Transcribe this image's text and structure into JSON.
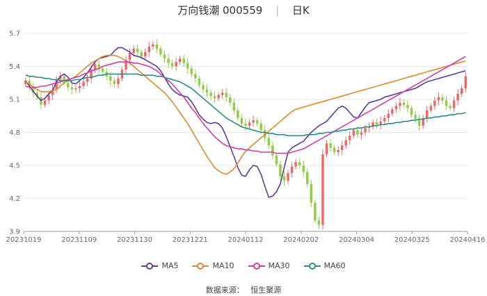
{
  "title": {
    "name": "万向钱潮 000559",
    "period": "日K"
  },
  "source": {
    "label": "数据来源：",
    "value": "恒生聚源"
  },
  "chart_data": {
    "type": "candlestick",
    "ylim": [
      3.9,
      5.7
    ],
    "y_ticks": [
      "3.9",
      "4.2",
      "4.5",
      "4.8",
      "5.1",
      "5.4",
      "5.7"
    ],
    "x_ticks": [
      "20231019",
      "20231109",
      "20231130",
      "20231221",
      "20240112",
      "20240202",
      "20240304",
      "20240325",
      "20240416"
    ],
    "up_color": "#ee6666",
    "down_color": "#91cc45",
    "legend_placement": "bottom",
    "grid": true,
    "series": [
      {
        "name": "MA5",
        "color": "#5b3d9c"
      },
      {
        "name": "MA10",
        "color": "#e0892e"
      },
      {
        "name": "MA30",
        "color": "#d43ea4"
      },
      {
        "name": "MA60",
        "color": "#2a8b8b"
      }
    ],
    "closes": [
      5.27,
      5.21,
      5.16,
      5.12,
      5.05,
      5.09,
      5.14,
      5.19,
      5.28,
      5.31,
      5.25,
      5.21,
      5.19,
      5.2,
      5.22,
      5.26,
      5.29,
      5.37,
      5.42,
      5.38,
      5.35,
      5.31,
      5.27,
      5.24,
      5.29,
      5.37,
      5.46,
      5.52,
      5.56,
      5.53,
      5.49,
      5.53,
      5.58,
      5.6,
      5.56,
      5.51,
      5.47,
      5.43,
      5.4,
      5.44,
      5.47,
      5.43,
      5.38,
      5.33,
      5.29,
      5.23,
      5.19,
      5.16,
      5.13,
      5.11,
      5.14,
      5.16,
      5.12,
      5.07,
      5.0,
      4.93,
      4.88,
      4.86,
      4.89,
      4.91,
      4.88,
      4.82,
      4.75,
      4.68,
      4.59,
      4.51,
      4.4,
      4.36,
      4.43,
      4.49,
      4.53,
      4.5,
      4.44,
      4.33,
      4.16,
      4.0,
      3.96,
      4.6,
      4.7,
      4.66,
      4.62,
      4.64,
      4.68,
      4.73,
      4.77,
      4.82,
      4.78,
      4.8,
      4.84,
      4.85,
      4.89,
      4.87,
      4.9,
      4.93,
      4.97,
      5.01,
      5.04,
      5.07,
      5.05,
      5.02,
      4.96,
      4.92,
      4.86,
      4.93,
      5.0,
      5.04,
      5.09,
      5.12,
      5.09,
      5.04,
      5.02,
      5.09,
      5.15,
      5.2,
      5.31
    ],
    "ma5": [
      5.27,
      5.22,
      5.17,
      5.13,
      5.09,
      5.11,
      5.15,
      5.18,
      5.26,
      5.31,
      5.33,
      5.3,
      5.25,
      5.24,
      5.27,
      5.3,
      5.34,
      5.39,
      5.44,
      5.47,
      5.48,
      5.49,
      5.5,
      5.54,
      5.57,
      5.57,
      5.55,
      5.53,
      5.5,
      5.49,
      5.48,
      5.46,
      5.44,
      5.42,
      5.4,
      5.36,
      5.3,
      5.24,
      5.19,
      5.16,
      5.14,
      5.13,
      5.12,
      5.08,
      5.02,
      4.96,
      4.92,
      4.89,
      4.88,
      4.89,
      4.88,
      4.84,
      4.76,
      4.67,
      4.58,
      4.48,
      4.41,
      4.4,
      4.46,
      4.5,
      4.49,
      4.42,
      4.31,
      4.21,
      4.22,
      4.26,
      4.33,
      4.48,
      4.62,
      4.66,
      4.68,
      4.7,
      4.72,
      4.76,
      4.8,
      4.83,
      4.86,
      4.88,
      4.9,
      4.94,
      4.98,
      5.02,
      5.04,
      5.02,
      4.98,
      4.94,
      4.93,
      4.98,
      5.03,
      5.07,
      5.08,
      5.09,
      5.1,
      5.12,
      5.13,
      5.14,
      5.15,
      5.16,
      5.17,
      5.18,
      5.19,
      5.2,
      5.22,
      5.24,
      5.26,
      5.27,
      5.28,
      5.29,
      5.3,
      5.31,
      5.32,
      5.33,
      5.34,
      5.35,
      5.36
    ],
    "ma10": [
      5.26,
      5.24,
      5.21,
      5.19,
      5.17,
      5.17,
      5.17,
      5.18,
      5.19,
      5.22,
      5.25,
      5.27,
      5.29,
      5.31,
      5.34,
      5.37,
      5.4,
      5.43,
      5.45,
      5.47,
      5.49,
      5.5,
      5.5,
      5.5,
      5.49,
      5.47,
      5.45,
      5.43,
      5.4,
      5.37,
      5.34,
      5.31,
      5.28,
      5.25,
      5.22,
      5.19,
      5.16,
      5.12,
      5.08,
      5.03,
      4.98,
      4.93,
      4.88,
      4.82,
      4.76,
      4.7,
      4.64,
      4.58,
      4.53,
      4.48,
      4.45,
      4.43,
      4.42,
      4.44,
      4.47,
      4.52,
      4.58,
      4.63,
      4.66,
      4.69,
      4.72,
      4.75,
      4.78,
      4.81,
      4.84,
      4.87,
      4.9,
      4.93,
      4.96,
      4.99,
      5.01,
      5.02,
      5.03,
      5.04,
      5.05,
      5.06,
      5.07,
      5.08,
      5.09,
      5.1,
      5.11,
      5.12,
      5.13,
      5.14,
      5.15,
      5.16,
      5.17,
      5.18,
      5.19,
      5.2,
      5.21,
      5.22,
      5.23,
      5.24,
      5.25,
      5.26,
      5.27,
      5.28,
      5.29,
      5.3,
      5.31,
      5.32,
      5.33,
      5.34,
      5.35,
      5.36,
      5.37,
      5.38,
      5.39,
      5.4,
      5.41,
      5.42,
      5.43,
      5.44,
      5.45
    ],
    "ma30": [
      5.22,
      5.21,
      5.21,
      5.21,
      5.22,
      5.22,
      5.23,
      5.24,
      5.25,
      5.26,
      5.27,
      5.28,
      5.29,
      5.3,
      5.31,
      5.33,
      5.34,
      5.36,
      5.37,
      5.38,
      5.4,
      5.41,
      5.42,
      5.43,
      5.44,
      5.44,
      5.44,
      5.44,
      5.43,
      5.43,
      5.42,
      5.41,
      5.4,
      5.38,
      5.36,
      5.33,
      5.3,
      5.27,
      5.24,
      5.2,
      5.16,
      5.12,
      5.07,
      5.02,
      4.98,
      4.93,
      4.88,
      4.84,
      4.8,
      4.76,
      4.73,
      4.7,
      4.68,
      4.67,
      4.66,
      4.65,
      4.65,
      4.64,
      4.64,
      4.63,
      4.63,
      4.62,
      4.62,
      4.62,
      4.62,
      4.61,
      4.61,
      4.61,
      4.61,
      4.62,
      4.63,
      4.64,
      4.65,
      4.67,
      4.69,
      4.71,
      4.73,
      4.75,
      4.77,
      4.79,
      4.81,
      4.83,
      4.85,
      4.87,
      4.89,
      4.91,
      4.93,
      4.95,
      4.97,
      4.99,
      5.01,
      5.03,
      5.05,
      5.07,
      5.09,
      5.11,
      5.13,
      5.15,
      5.17,
      5.19,
      5.21,
      5.23,
      5.25,
      5.27,
      5.29,
      5.31,
      5.33,
      5.35,
      5.37,
      5.39,
      5.41,
      5.43,
      5.45,
      5.47,
      5.49
    ],
    "ma60": [
      5.32,
      5.31,
      5.31,
      5.3,
      5.3,
      5.29,
      5.29,
      5.28,
      5.28,
      5.27,
      5.27,
      5.27,
      5.27,
      5.28,
      5.28,
      5.29,
      5.3,
      5.3,
      5.31,
      5.32,
      5.32,
      5.33,
      5.33,
      5.33,
      5.33,
      5.33,
      5.33,
      5.33,
      5.33,
      5.33,
      5.32,
      5.32,
      5.32,
      5.32,
      5.31,
      5.31,
      5.3,
      5.29,
      5.28,
      5.27,
      5.26,
      5.24,
      5.22,
      5.2,
      5.17,
      5.14,
      5.11,
      5.08,
      5.05,
      5.02,
      4.99,
      4.96,
      4.93,
      4.91,
      4.89,
      4.87,
      4.85,
      4.84,
      4.83,
      4.82,
      4.81,
      4.8,
      4.8,
      4.79,
      4.79,
      4.78,
      4.78,
      4.78,
      4.77,
      4.77,
      4.77,
      4.77,
      4.77,
      4.78,
      4.78,
      4.78,
      4.79,
      4.79,
      4.8,
      4.8,
      4.81,
      4.81,
      4.82,
      4.82,
      4.83,
      4.83,
      4.84,
      4.84,
      4.85,
      4.85,
      4.86,
      4.86,
      4.87,
      4.87,
      4.88,
      4.88,
      4.89,
      4.89,
      4.9,
      4.9,
      4.91,
      4.91,
      4.92,
      4.92,
      4.93,
      4.93,
      4.94,
      4.94,
      4.95,
      4.95,
      4.96,
      4.96,
      4.97,
      4.97,
      4.98
    ]
  }
}
